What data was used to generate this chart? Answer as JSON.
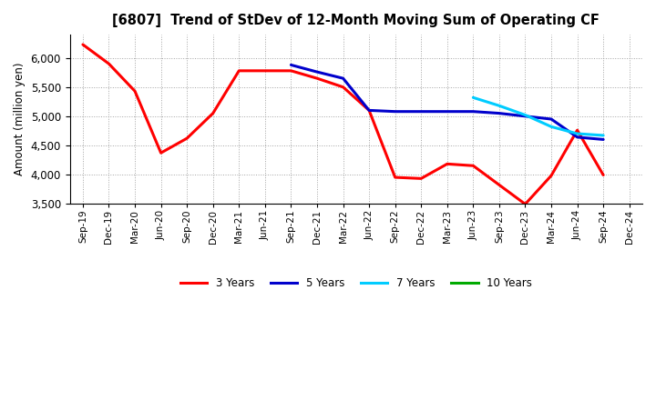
{
  "title": "[6807]  Trend of StDev of 12-Month Moving Sum of Operating CF",
  "ylabel": "Amount (million yen)",
  "ylim": [
    3500,
    6400
  ],
  "yticks": [
    3500,
    4000,
    4500,
    5000,
    5500,
    6000
  ],
  "background_color": "#ffffff",
  "grid_color": "#aaaaaa",
  "x_labels": [
    "Sep-19",
    "Dec-19",
    "Mar-20",
    "Jun-20",
    "Sep-20",
    "Dec-20",
    "Mar-21",
    "Jun-21",
    "Sep-21",
    "Dec-21",
    "Mar-22",
    "Jun-22",
    "Sep-22",
    "Dec-22",
    "Mar-23",
    "Jun-23",
    "Sep-23",
    "Dec-23",
    "Mar-24",
    "Jun-24",
    "Sep-24",
    "Dec-24"
  ],
  "series": {
    "3 Years": {
      "color": "#ff0000",
      "linewidth": 2.2,
      "data_x": [
        0,
        1,
        2,
        3,
        4,
        5,
        6,
        7,
        8,
        9,
        10,
        11,
        12,
        13,
        14,
        15,
        16,
        17,
        18,
        19,
        20
      ],
      "data_y": [
        6230,
        5900,
        5430,
        4370,
        4620,
        5050,
        5780,
        5780,
        5780,
        5650,
        5500,
        5100,
        3950,
        3930,
        4180,
        4150,
        3820,
        3490,
        3980,
        4760,
        3990
      ]
    },
    "5 Years": {
      "color": "#0000cc",
      "linewidth": 2.2,
      "data_x": [
        8,
        9,
        10,
        11,
        12,
        13,
        14,
        15,
        16,
        17,
        18,
        19,
        20
      ],
      "data_y": [
        5880,
        5760,
        5650,
        5100,
        5080,
        5080,
        5080,
        5080,
        5050,
        5000,
        4950,
        4640,
        4600
      ]
    },
    "7 Years": {
      "color": "#00ccff",
      "linewidth": 2.2,
      "data_x": [
        15,
        16,
        17,
        18,
        19,
        20
      ],
      "data_y": [
        5320,
        5180,
        5020,
        4820,
        4700,
        4670
      ]
    },
    "10 Years": {
      "color": "#00aa00",
      "linewidth": 2.2,
      "data_x": [],
      "data_y": []
    }
  },
  "legend_order": [
    "3 Years",
    "5 Years",
    "7 Years",
    "10 Years"
  ]
}
